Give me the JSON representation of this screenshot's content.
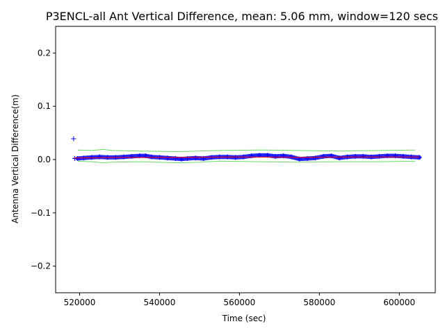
{
  "chart_data": {
    "type": "scatter",
    "title": "P3ENCL-all Ant Vertical Difference, mean: 5.06 mm, window=120 secs",
    "xlabel": "Time (sec)",
    "ylabel": "Antenna Vertical Difference(m)",
    "xlim": [
      514000,
      609000
    ],
    "ylim": [
      -0.25,
      0.25
    ],
    "x_ticks": [
      520000,
      540000,
      560000,
      580000,
      600000
    ],
    "x_tick_labels": [
      "520000",
      "540000",
      "560000",
      "580000",
      "600000"
    ],
    "y_ticks": [
      0.2,
      0.1,
      0.0,
      -0.1,
      -0.2
    ],
    "y_tick_labels": [
      "0.2",
      "0.1",
      "0.0",
      "−0.1",
      "−0.2"
    ],
    "grid": false,
    "series": [
      {
        "marker": "+",
        "color": "#0000ff",
        "x": [
          518500,
          518800,
          519500,
          521000,
          523000,
          525000,
          527000,
          529000,
          531000,
          533000,
          535000,
          536500,
          538000,
          540000,
          542000,
          544000,
          545500,
          547000,
          549000,
          551000,
          553000,
          555000,
          557000,
          559000,
          561000,
          563000,
          565000,
          567000,
          569000,
          571000,
          573000,
          575000,
          577000,
          579000,
          581000,
          583000,
          585000,
          587000,
          589000,
          591000,
          593000,
          595000,
          597000,
          599000,
          601000,
          603000,
          605000
        ],
        "values": [
          0.039,
          0.002,
          0.002,
          0.003,
          0.004,
          0.005,
          0.004,
          0.004,
          0.005,
          0.006,
          0.007,
          0.007,
          0.005,
          0.004,
          0.003,
          0.002,
          0.001,
          0.002,
          0.003,
          0.002,
          0.004,
          0.005,
          0.005,
          0.004,
          0.005,
          0.007,
          0.008,
          0.008,
          0.006,
          0.007,
          0.005,
          0.001,
          0.002,
          0.003,
          0.006,
          0.007,
          0.003,
          0.005,
          0.006,
          0.006,
          0.005,
          0.006,
          0.007,
          0.007,
          0.006,
          0.005,
          0.004
        ]
      },
      {
        "style": "line",
        "color": "#ff0000",
        "x": [
          518500,
          530000,
          545000,
          560000,
          575000,
          590000,
          605000
        ],
        "values": [
          0.003,
          0.004,
          0.004,
          0.005,
          0.004,
          0.005,
          0.005
        ]
      },
      {
        "style": "line",
        "color": "#66dd66",
        "x": [
          519500,
          523000,
          526000,
          528000,
          535000,
          545000,
          555000,
          565000,
          575000,
          585000,
          595000,
          604000
        ],
        "values": [
          0.018,
          0.017,
          0.019,
          0.017,
          0.016,
          0.015,
          0.017,
          0.018,
          0.017,
          0.016,
          0.017,
          0.018
        ]
      },
      {
        "style": "line",
        "color": "#66dd66",
        "x": [
          519500,
          523000,
          526000,
          528000,
          535000,
          545000,
          550000,
          555000,
          565000,
          575000,
          585000,
          595000,
          604000
        ],
        "values": [
          -0.003,
          -0.004,
          -0.006,
          -0.005,
          -0.004,
          -0.006,
          -0.005,
          -0.003,
          -0.004,
          -0.005,
          -0.004,
          -0.004,
          -0.003
        ]
      }
    ]
  }
}
